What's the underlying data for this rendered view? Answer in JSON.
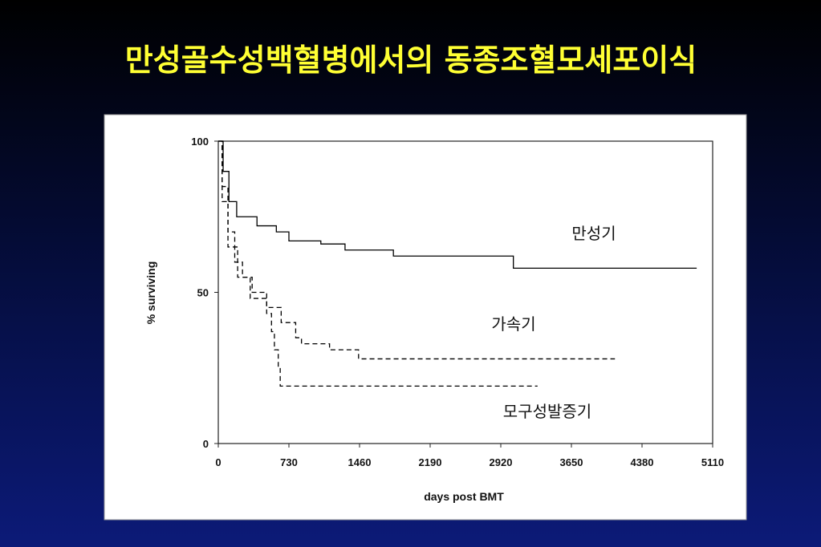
{
  "chart_data": {
    "type": "line",
    "step": true,
    "title": "만성골수성백혈병에서의 동종조혈모세포이식",
    "xlabel": "days post BMT",
    "ylabel": "% surviving",
    "xlim": [
      0,
      5110
    ],
    "ylim": [
      0,
      100
    ],
    "xticks": [
      0,
      730,
      1460,
      2190,
      2920,
      3650,
      4380,
      5110
    ],
    "yticks": [
      0,
      50,
      100
    ],
    "series": [
      {
        "name": "만성기",
        "color": "#000000",
        "line_style": "solid",
        "x": [
          0,
          50,
          110,
          190,
          400,
          600,
          730,
          1060,
          1310,
          1810,
          3050,
          4945
        ],
        "values": [
          100,
          90,
          80,
          75,
          72,
          70,
          67,
          66,
          64,
          62,
          58,
          58
        ]
      },
      {
        "name": "가속기",
        "color": "#000000",
        "line_style": "dashed",
        "x": [
          0,
          40,
          100,
          170,
          250,
          350,
          500,
          650,
          800,
          860,
          1150,
          1450,
          4100
        ],
        "values": [
          100,
          85,
          70,
          60,
          55,
          50,
          45,
          40,
          35,
          33,
          31,
          28,
          28
        ]
      },
      {
        "name": "모구성발증기",
        "color": "#000000",
        "line_style": "dashed",
        "x": [
          0,
          40,
          100,
          200,
          330,
          500,
          550,
          580,
          620,
          640,
          3300
        ],
        "values": [
          100,
          80,
          65,
          55,
          48,
          43,
          37,
          31,
          25,
          19,
          19
        ]
      }
    ]
  }
}
